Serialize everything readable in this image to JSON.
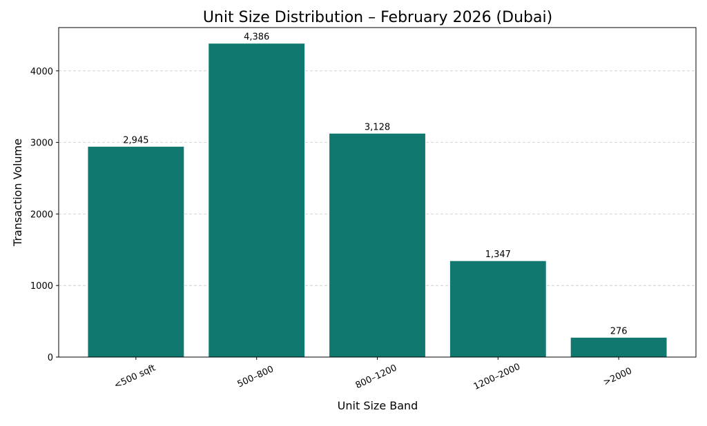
{
  "chart_data": {
    "type": "bar",
    "title": "Unit Size Distribution – February 2026 (Dubai)",
    "xlabel": "Unit Size Band",
    "ylabel": "Transaction Volume",
    "categories": [
      "<500 sqft",
      "500–800",
      "800–1200",
      "1200–2000",
      ">2000"
    ],
    "values": [
      2945,
      4386,
      3128,
      1347,
      276
    ],
    "data_labels": [
      "2,945",
      "4,386",
      "3,128",
      "1,347",
      "276"
    ],
    "yticks": [
      0,
      1000,
      2000,
      3000,
      4000
    ],
    "ylim": [
      0,
      4605
    ],
    "grid": "y-dashed",
    "bar_color": "#117870"
  }
}
